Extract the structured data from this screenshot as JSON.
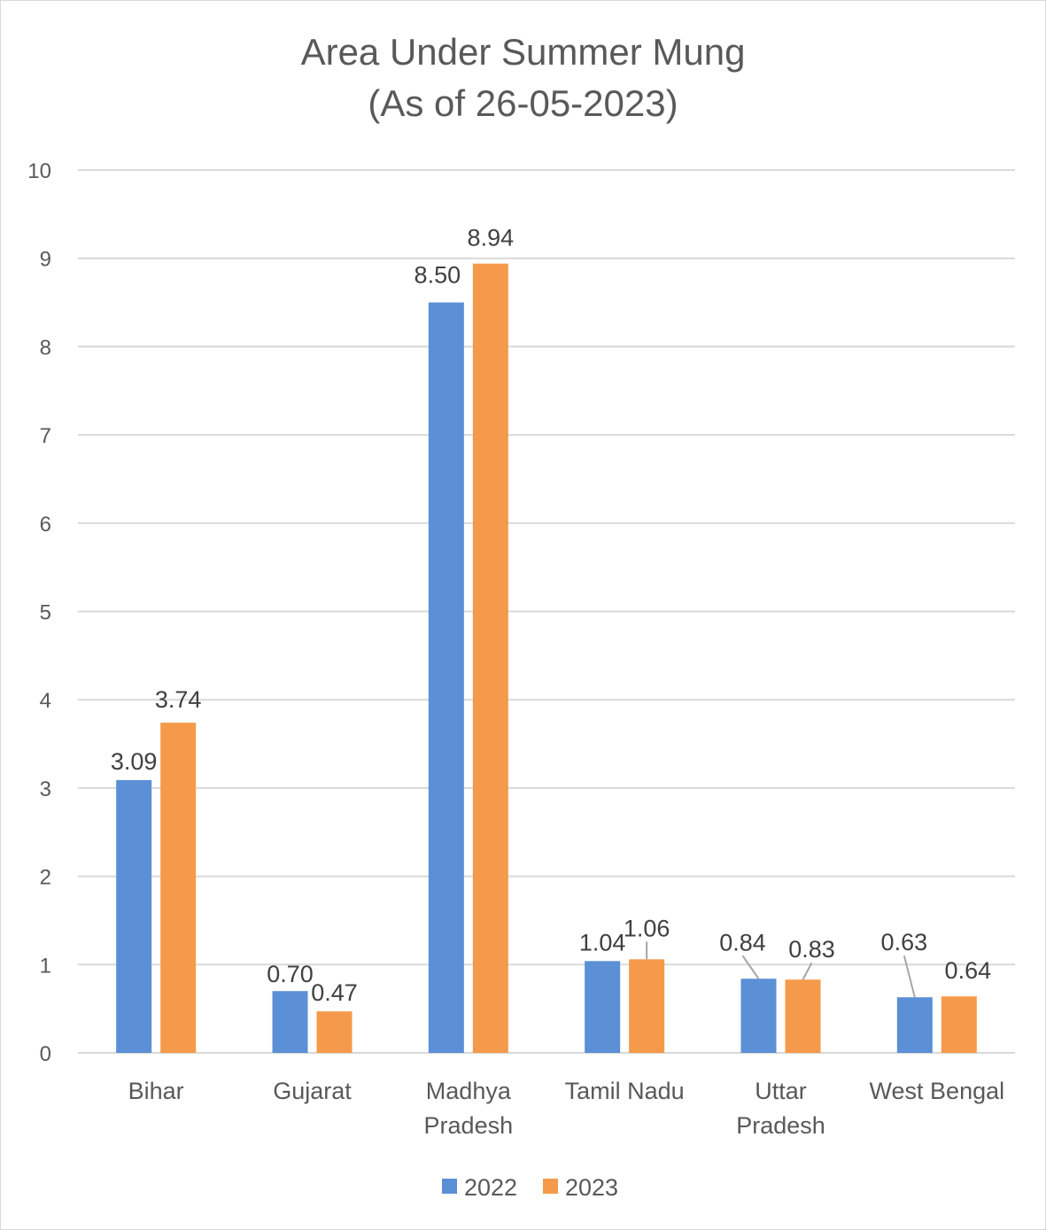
{
  "chart_data": {
    "type": "bar",
    "title": "Area Under Summer Mung",
    "subtitle": "(As of 26-05-2023)",
    "categories": [
      [
        "Bihar"
      ],
      [
        "Gujarat"
      ],
      [
        "Madhya",
        "Pradesh"
      ],
      [
        "Tamil Nadu"
      ],
      [
        "Uttar",
        "Pradesh"
      ],
      [
        "West Bengal"
      ]
    ],
    "series": [
      {
        "name": "2022",
        "color": "#5b8fd6",
        "values": [
          3.09,
          0.7,
          8.5,
          1.04,
          0.84,
          0.63
        ],
        "labels": [
          "3.09",
          "0.70",
          "8.50",
          "1.04",
          "0.84",
          "0.63"
        ]
      },
      {
        "name": "2023",
        "color": "#f59a4a",
        "values": [
          3.74,
          0.47,
          8.94,
          1.06,
          0.83,
          0.64
        ],
        "labels": [
          "3.74",
          "0.47",
          "8.94",
          "1.06",
          "0.83",
          "0.64"
        ]
      }
    ],
    "ylim": [
      0,
      10
    ],
    "yticks": [
      0,
      1,
      2,
      3,
      4,
      5,
      6,
      7,
      8,
      9,
      10
    ],
    "xlabel": "",
    "ylabel": "",
    "grid": true,
    "legend": "bottom-center",
    "colors": {
      "gridline": "#d9d9d9",
      "axis_text": "#595959",
      "label_text": "#404040",
      "leader": "#a6a6a6"
    }
  }
}
